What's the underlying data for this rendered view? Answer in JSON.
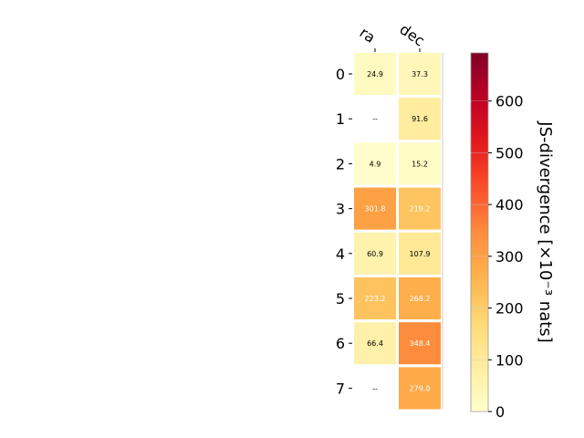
{
  "chart_data": {
    "type": "heatmap",
    "columns": [
      "ra",
      "dec"
    ],
    "rows": [
      "0",
      "1",
      "2",
      "3",
      "4",
      "5",
      "6",
      "7"
    ],
    "values": [
      [
        24.9,
        37.3
      ],
      [
        null,
        91.6
      ],
      [
        4.9,
        15.2
      ],
      [
        301.8,
        219.2
      ],
      [
        60.9,
        107.9
      ],
      [
        223.2,
        268.2
      ],
      [
        66.4,
        348.4
      ],
      [
        null,
        279.0
      ]
    ],
    "labels": [
      [
        "24.9",
        "37.3"
      ],
      [
        "--",
        "91.6"
      ],
      [
        "4.9",
        "15.2"
      ],
      [
        "301.8",
        "219.2"
      ],
      [
        "60.9",
        "107.9"
      ],
      [
        "223.2",
        "268.2"
      ],
      [
        "66.4",
        "348.4"
      ],
      [
        "--",
        "279.0"
      ]
    ],
    "colorbar": {
      "label": "JS-divergence [×10⁻³ nats]",
      "range": [
        0,
        693
      ],
      "ticks": [
        "0",
        "100",
        "200",
        "300",
        "400",
        "500",
        "600"
      ],
      "tick_values": [
        0,
        100,
        200,
        300,
        400,
        500,
        600
      ],
      "colormap": "YlOrRd"
    }
  }
}
